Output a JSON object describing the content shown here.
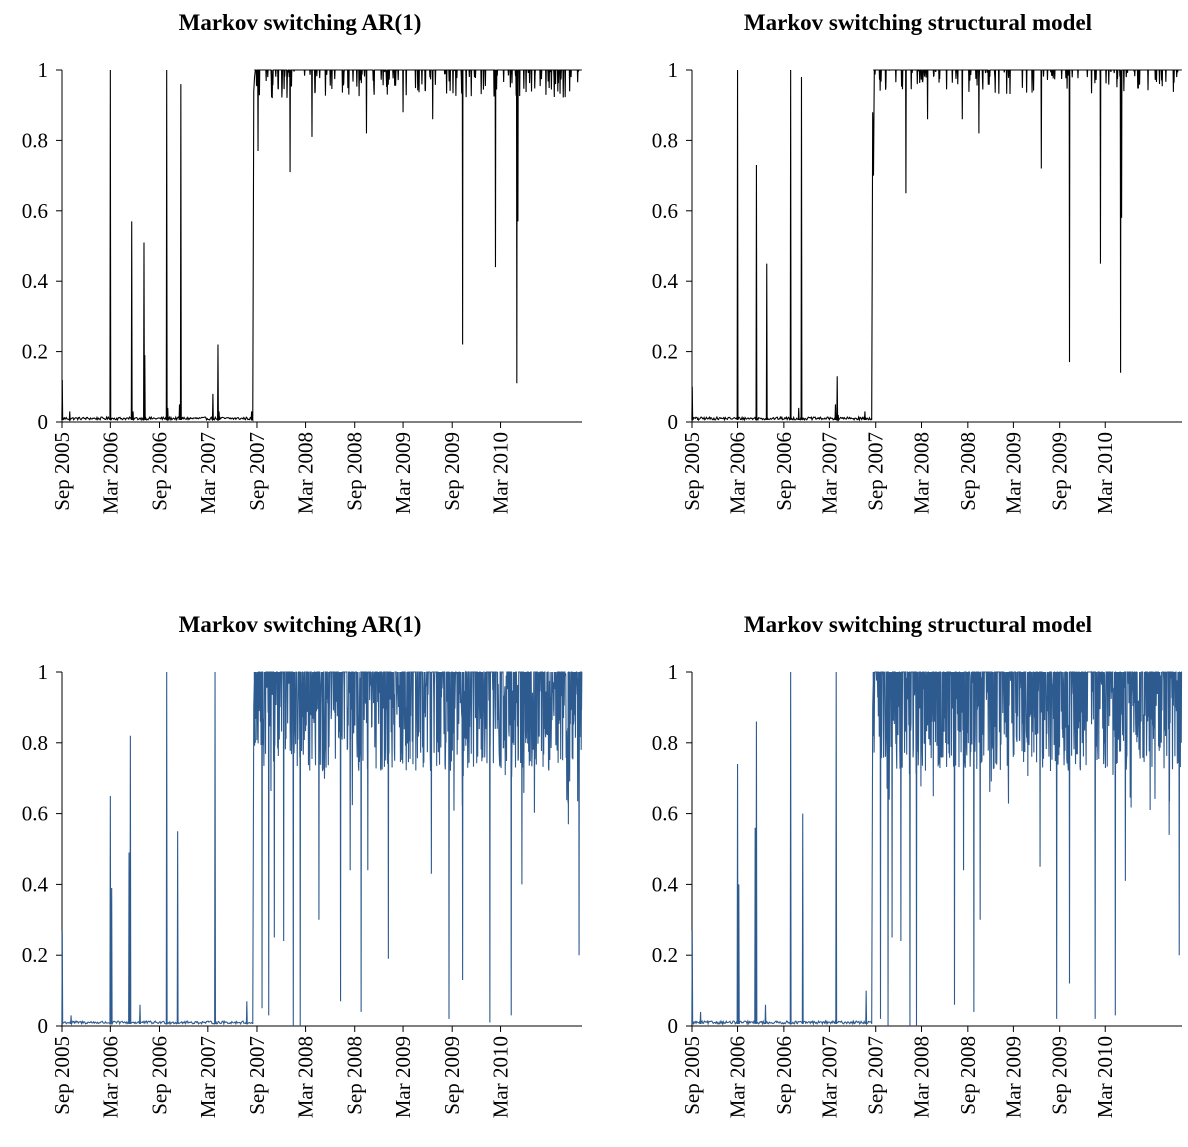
{
  "chart_data": [
    {
      "type": "line",
      "title": "Markov switching AR(1)",
      "xlabel": "",
      "ylabel": "",
      "x_tick_labels": [
        "Sep 2005",
        "Mar 2006",
        "Sep 2006",
        "Mar 2007",
        "Sep 2007",
        "Mar 2008",
        "Sep 2008",
        "Mar 2009",
        "Sep 2009",
        "Mar 2010"
      ],
      "y_tick_labels": [
        "0",
        "0.2",
        "0.4",
        "0.6",
        "0.8",
        "1"
      ],
      "ylim": [
        0,
        1
      ],
      "x_range": [
        "2005-09-01",
        "2010-12-31"
      ],
      "grid": false,
      "legend": "none",
      "color": "#000000",
      "spikes": [
        {
          "date": "2005-09-02",
          "value": 0.12
        },
        {
          "date": "2005-09-30",
          "value": 0.03
        },
        {
          "date": "2006-03-01",
          "value": 1.0
        },
        {
          "date": "2006-05-20",
          "value": 0.57
        },
        {
          "date": "2006-05-25",
          "value": 0.03
        },
        {
          "date": "2006-07-05",
          "value": 0.51
        },
        {
          "date": "2006-07-08",
          "value": 0.19
        },
        {
          "date": "2006-09-28",
          "value": 1.0
        },
        {
          "date": "2006-10-02",
          "value": 0.04
        },
        {
          "date": "2006-11-20",
          "value": 0.96
        },
        {
          "date": "2006-11-15",
          "value": 0.05
        },
        {
          "date": "2007-03-20",
          "value": 0.08
        },
        {
          "date": "2007-04-08",
          "value": 0.22
        },
        {
          "date": "2007-04-12",
          "value": 0.03
        },
        {
          "date": "2007-08-12",
          "value": 0.03
        }
      ],
      "regime_start": "2007-08-20",
      "regime_start_values": [
        0.94,
        0.98,
        1.0
      ],
      "dips": [
        {
          "date": "2007-09-05",
          "value": 0.77
        },
        {
          "date": "2008-01-03",
          "value": 0.71
        },
        {
          "date": "2008-03-25",
          "value": 0.81
        },
        {
          "date": "2008-08-10",
          "value": 0.93
        },
        {
          "date": "2008-10-15",
          "value": 0.82
        },
        {
          "date": "2009-03-01",
          "value": 0.88
        },
        {
          "date": "2009-06-20",
          "value": 0.86
        },
        {
          "date": "2009-10-10",
          "value": 0.22
        },
        {
          "date": "2010-02-10",
          "value": 0.44
        },
        {
          "date": "2010-05-01",
          "value": 0.11
        },
        {
          "date": "2010-05-05",
          "value": 0.57
        },
        {
          "date": "2010-11-20",
          "value": 0.98
        }
      ],
      "ripple_min": 0.92
    },
    {
      "type": "line",
      "title": "Markov switching structural model",
      "xlabel": "",
      "ylabel": "",
      "x_tick_labels": [
        "Sep 2005",
        "Mar 2006",
        "Sep 2006",
        "Mar 2007",
        "Sep 2007",
        "Mar 2008",
        "Sep 2008",
        "Mar 2009",
        "Sep 2009",
        "Mar 2010"
      ],
      "y_tick_labels": [
        "0",
        "0.2",
        "0.4",
        "0.6",
        "0.8",
        "1"
      ],
      "ylim": [
        0,
        1
      ],
      "x_range": [
        "2005-09-01",
        "2010-12-31"
      ],
      "grid": false,
      "legend": "none",
      "color": "#000000",
      "spikes": [
        {
          "date": "2005-09-02",
          "value": 0.1
        },
        {
          "date": "2005-09-25",
          "value": 0.01
        },
        {
          "date": "2006-03-01",
          "value": 1.0
        },
        {
          "date": "2006-05-15",
          "value": 0.73
        },
        {
          "date": "2006-06-25",
          "value": 0.45
        },
        {
          "date": "2006-09-28",
          "value": 1.0
        },
        {
          "date": "2006-10-30",
          "value": 0.04
        },
        {
          "date": "2006-11-10",
          "value": 0.98
        },
        {
          "date": "2007-03-25",
          "value": 0.05
        },
        {
          "date": "2007-04-01",
          "value": 0.13
        },
        {
          "date": "2007-04-05",
          "value": 0.02
        },
        {
          "date": "2007-07-20",
          "value": 0.03
        }
      ],
      "regime_start": "2007-08-20",
      "regime_start_values": [
        0.88,
        0.7,
        1.0
      ],
      "dips": [
        {
          "date": "2007-12-30",
          "value": 0.65
        },
        {
          "date": "2008-03-25",
          "value": 0.86
        },
        {
          "date": "2008-08-10",
          "value": 0.86
        },
        {
          "date": "2008-10-15",
          "value": 0.82
        },
        {
          "date": "2009-06-20",
          "value": 0.72
        },
        {
          "date": "2009-10-10",
          "value": 0.17
        },
        {
          "date": "2010-02-10",
          "value": 0.45
        },
        {
          "date": "2010-05-01",
          "value": 0.14
        },
        {
          "date": "2010-05-05",
          "value": 0.58
        },
        {
          "date": "2010-12-10",
          "value": 0.98
        }
      ],
      "ripple_min": 0.93
    },
    {
      "type": "line",
      "title": "Markov switching AR(1)",
      "xlabel": "",
      "ylabel": "",
      "x_tick_labels": [
        "Sep 2005",
        "Mar 2006",
        "Sep 2006",
        "Mar 2007",
        "Sep 2007",
        "Mar 2008",
        "Sep 2008",
        "Mar 2009",
        "Sep 2009",
        "Mar 2010"
      ],
      "y_tick_labels": [
        "0",
        "0.2",
        "0.4",
        "0.6",
        "0.8",
        "1"
      ],
      "ylim": [
        0,
        1
      ],
      "x_range": [
        "2005-09-01",
        "2010-12-31"
      ],
      "grid": false,
      "legend": "none",
      "color": "#2e5b8f",
      "spikes": [
        {
          "date": "2005-09-02",
          "value": 0.27
        },
        {
          "date": "2005-10-05",
          "value": 0.03
        },
        {
          "date": "2006-03-01",
          "value": 0.65
        },
        {
          "date": "2006-03-06",
          "value": 0.39
        },
        {
          "date": "2006-05-10",
          "value": 0.49
        },
        {
          "date": "2006-05-15",
          "value": 0.82
        },
        {
          "date": "2006-06-20",
          "value": 0.06
        },
        {
          "date": "2006-09-28",
          "value": 1.0
        },
        {
          "date": "2006-11-08",
          "value": 0.55
        },
        {
          "date": "2007-03-28",
          "value": 1.0
        },
        {
          "date": "2007-07-25",
          "value": 0.07
        }
      ],
      "regime_start": "2007-08-20",
      "regime_start_values": [
        0.9,
        1.0,
        0.8
      ],
      "dips": [
        {
          "date": "2007-09-20",
          "value": 0.05
        },
        {
          "date": "2007-10-15",
          "value": 0.03
        },
        {
          "date": "2007-11-05",
          "value": 0.25
        },
        {
          "date": "2007-12-10",
          "value": 0.24
        },
        {
          "date": "2008-01-15",
          "value": 0.0
        },
        {
          "date": "2008-02-10",
          "value": 0.0
        },
        {
          "date": "2008-04-20",
          "value": 0.3
        },
        {
          "date": "2008-07-10",
          "value": 0.07
        },
        {
          "date": "2008-08-15",
          "value": 0.44
        },
        {
          "date": "2008-09-25",
          "value": 0.04
        },
        {
          "date": "2008-10-20",
          "value": 0.44
        },
        {
          "date": "2009-01-05",
          "value": 0.19
        },
        {
          "date": "2009-06-15",
          "value": 0.43
        },
        {
          "date": "2009-08-20",
          "value": 0.02
        },
        {
          "date": "2009-10-10",
          "value": 0.13
        },
        {
          "date": "2010-01-20",
          "value": 0.01
        },
        {
          "date": "2010-04-10",
          "value": 0.03
        },
        {
          "date": "2010-05-20",
          "value": 0.4
        },
        {
          "date": "2010-11-10",
          "value": 0.57
        },
        {
          "date": "2010-12-20",
          "value": 0.2
        },
        {
          "date": "2010-12-28",
          "value": 0.78
        }
      ],
      "ripple_min": 0.72
    },
    {
      "type": "line",
      "title": "Markov switching structural model",
      "xlabel": "",
      "ylabel": "",
      "x_tick_labels": [
        "Sep 2005",
        "Mar 2006",
        "Sep 2006",
        "Mar 2007",
        "Sep 2007",
        "Mar 2008",
        "Sep 2008",
        "Mar 2009",
        "Sep 2009",
        "Mar 2010"
      ],
      "y_tick_labels": [
        "0",
        "0.2",
        "0.4",
        "0.6",
        "0.8",
        "1"
      ],
      "ylim": [
        0,
        1
      ],
      "x_range": [
        "2005-09-01",
        "2010-12-31"
      ],
      "grid": false,
      "legend": "none",
      "color": "#2e5b8f",
      "spikes": [
        {
          "date": "2005-09-02",
          "value": 0.27
        },
        {
          "date": "2005-10-05",
          "value": 0.04
        },
        {
          "date": "2006-03-01",
          "value": 0.74
        },
        {
          "date": "2006-03-06",
          "value": 0.4
        },
        {
          "date": "2006-05-10",
          "value": 0.56
        },
        {
          "date": "2006-05-15",
          "value": 0.86
        },
        {
          "date": "2006-06-20",
          "value": 0.06
        },
        {
          "date": "2006-09-28",
          "value": 1.0
        },
        {
          "date": "2006-11-15",
          "value": 0.6
        },
        {
          "date": "2007-03-28",
          "value": 1.0
        },
        {
          "date": "2007-07-25",
          "value": 0.1
        }
      ],
      "regime_start": "2007-08-20",
      "regime_start_values": [
        0.9,
        1.0,
        0.81
      ],
      "dips": [
        {
          "date": "2007-09-20",
          "value": 0.02
        },
        {
          "date": "2007-10-20",
          "value": 0.0
        },
        {
          "date": "2007-11-05",
          "value": 0.25
        },
        {
          "date": "2007-12-10",
          "value": 0.24
        },
        {
          "date": "2008-01-15",
          "value": 0.0
        },
        {
          "date": "2008-02-10",
          "value": 0.0
        },
        {
          "date": "2008-07-10",
          "value": 0.06
        },
        {
          "date": "2008-08-15",
          "value": 0.44
        },
        {
          "date": "2008-09-25",
          "value": 0.04
        },
        {
          "date": "2008-10-20",
          "value": 0.3
        },
        {
          "date": "2009-06-15",
          "value": 0.45
        },
        {
          "date": "2009-08-20",
          "value": 0.02
        },
        {
          "date": "2009-10-10",
          "value": 0.12
        },
        {
          "date": "2010-01-20",
          "value": 0.02
        },
        {
          "date": "2010-04-10",
          "value": 0.03
        },
        {
          "date": "2010-05-20",
          "value": 0.41
        },
        {
          "date": "2010-11-10",
          "value": 0.54
        },
        {
          "date": "2010-12-20",
          "value": 0.2
        },
        {
          "date": "2010-12-28",
          "value": 0.8
        }
      ],
      "ripple_min": 0.72
    }
  ]
}
